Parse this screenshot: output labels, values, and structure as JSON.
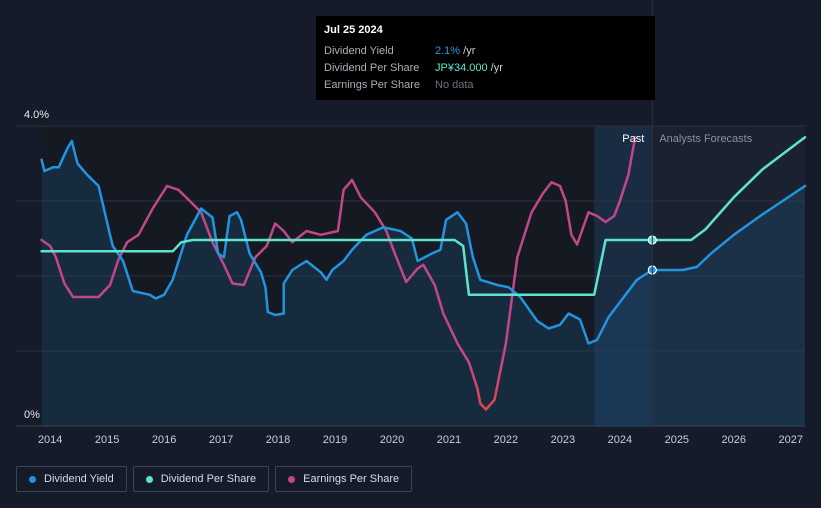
{
  "tooltip": {
    "date": "Jul 25 2024",
    "rows": [
      {
        "label": "Dividend Yield",
        "value": "2.1%",
        "suffix": " /yr"
      },
      {
        "label": "Dividend Per Share",
        "value": "JP¥34.000",
        "suffix": " /yr"
      },
      {
        "label": "Earnings Per Share",
        "value": "No data",
        "suffix": ""
      }
    ]
  },
  "legend": [
    {
      "label": "Dividend Yield",
      "color": "#2394df"
    },
    {
      "label": "Dividend Per Share",
      "color": "#5fe3cd"
    },
    {
      "label": "Earnings Per Share",
      "color": "#c2478a"
    }
  ],
  "chart_data": {
    "type": "line",
    "y_axis_labels": [
      "4.0%",
      "0%"
    ],
    "ylim": [
      0,
      4.0
    ],
    "xlim": [
      2013.4,
      2027.25
    ],
    "x_ticks": [
      "2014",
      "2015",
      "2016",
      "2017",
      "2018",
      "2019",
      "2020",
      "2021",
      "2022",
      "2023",
      "2024",
      "2025",
      "2026",
      "2027"
    ],
    "regions": {
      "past_label": "Past",
      "forecast_label": "Analysts Forecasts",
      "past_end": 2024.57,
      "highlight_start": 2023.55,
      "data_start": 2013.85
    },
    "series": [
      {
        "name": "Dividend Yield",
        "color": "#2394df",
        "unit": "%",
        "points": [
          [
            2013.85,
            3.55
          ],
          [
            2013.9,
            3.4
          ],
          [
            2014.05,
            3.45
          ],
          [
            2014.15,
            3.45
          ],
          [
            2014.3,
            3.7
          ],
          [
            2014.38,
            3.8
          ],
          [
            2014.48,
            3.5
          ],
          [
            2014.65,
            3.35
          ],
          [
            2014.85,
            3.2
          ],
          [
            2015.05,
            2.55
          ],
          [
            2015.1,
            2.4
          ],
          [
            2015.28,
            2.2
          ],
          [
            2015.45,
            1.8
          ],
          [
            2015.75,
            1.75
          ],
          [
            2015.85,
            1.7
          ],
          [
            2016.0,
            1.75
          ],
          [
            2016.15,
            1.95
          ],
          [
            2016.4,
            2.55
          ],
          [
            2016.65,
            2.9
          ],
          [
            2016.85,
            2.78
          ],
          [
            2016.95,
            2.3
          ],
          [
            2017.05,
            2.25
          ],
          [
            2017.15,
            2.8
          ],
          [
            2017.28,
            2.85
          ],
          [
            2017.35,
            2.75
          ],
          [
            2017.5,
            2.3
          ],
          [
            2017.7,
            2.05
          ],
          [
            2017.78,
            1.85
          ],
          [
            2017.82,
            1.52
          ],
          [
            2017.95,
            1.48
          ],
          [
            2018.1,
            1.5
          ],
          [
            2018.1,
            1.9
          ],
          [
            2018.25,
            2.08
          ],
          [
            2018.5,
            2.2
          ],
          [
            2018.75,
            2.05
          ],
          [
            2018.85,
            1.95
          ],
          [
            2018.95,
            2.08
          ],
          [
            2019.15,
            2.2
          ],
          [
            2019.3,
            2.35
          ],
          [
            2019.55,
            2.55
          ],
          [
            2019.85,
            2.65
          ],
          [
            2020.15,
            2.6
          ],
          [
            2020.35,
            2.5
          ],
          [
            2020.45,
            2.2
          ],
          [
            2020.7,
            2.3
          ],
          [
            2020.85,
            2.35
          ],
          [
            2020.95,
            2.75
          ],
          [
            2021.15,
            2.85
          ],
          [
            2021.3,
            2.7
          ],
          [
            2021.42,
            2.25
          ],
          [
            2021.55,
            1.95
          ],
          [
            2021.85,
            1.88
          ],
          [
            2022.05,
            1.85
          ],
          [
            2022.25,
            1.72
          ],
          [
            2022.55,
            1.4
          ],
          [
            2022.75,
            1.3
          ],
          [
            2022.95,
            1.35
          ],
          [
            2023.1,
            1.5
          ],
          [
            2023.3,
            1.42
          ],
          [
            2023.45,
            1.1
          ],
          [
            2023.6,
            1.15
          ],
          [
            2023.8,
            1.45
          ],
          [
            2024.05,
            1.7
          ],
          [
            2024.3,
            1.95
          ],
          [
            2024.57,
            2.08
          ],
          [
            2024.8,
            2.08
          ],
          [
            2025.1,
            2.08
          ],
          [
            2025.35,
            2.12
          ],
          [
            2025.6,
            2.3
          ],
          [
            2026.0,
            2.55
          ],
          [
            2026.5,
            2.82
          ],
          [
            2027.25,
            3.2
          ]
        ],
        "highlight": {
          "x": 2024.57,
          "y": 2.08
        }
      },
      {
        "name": "Dividend Per Share",
        "color": "#5fe3cd",
        "unit": "JP¥",
        "points": [
          [
            2013.85,
            2.33
          ],
          [
            2016.15,
            2.33
          ],
          [
            2016.3,
            2.45
          ],
          [
            2016.5,
            2.48
          ],
          [
            2021.1,
            2.48
          ],
          [
            2021.25,
            2.4
          ],
          [
            2021.35,
            1.75
          ],
          [
            2023.55,
            1.75
          ],
          [
            2023.75,
            2.48
          ],
          [
            2024.57,
            2.48
          ],
          [
            2025.25,
            2.48
          ],
          [
            2025.5,
            2.62
          ],
          [
            2026.0,
            3.05
          ],
          [
            2026.5,
            3.42
          ],
          [
            2027.25,
            3.85
          ]
        ],
        "highlight": {
          "x": 2024.57,
          "y": 2.48
        }
      },
      {
        "name": "Earnings Per Share",
        "color": "#c2478a",
        "negative_color": "#e0444e",
        "unit": "JP¥",
        "points": [
          [
            2013.85,
            2.48
          ],
          [
            2014.0,
            2.4
          ],
          [
            2014.1,
            2.25
          ],
          [
            2014.25,
            1.9
          ],
          [
            2014.4,
            1.72
          ],
          [
            2014.6,
            1.72
          ],
          [
            2014.85,
            1.72
          ],
          [
            2015.05,
            1.88
          ],
          [
            2015.2,
            2.22
          ],
          [
            2015.35,
            2.45
          ],
          [
            2015.55,
            2.55
          ],
          [
            2015.8,
            2.9
          ],
          [
            2016.05,
            3.2
          ],
          [
            2016.25,
            3.15
          ],
          [
            2016.45,
            3.0
          ],
          [
            2016.65,
            2.85
          ],
          [
            2016.85,
            2.45
          ],
          [
            2017.05,
            2.15
          ],
          [
            2017.2,
            1.9
          ],
          [
            2017.4,
            1.88
          ],
          [
            2017.6,
            2.25
          ],
          [
            2017.8,
            2.4
          ],
          [
            2017.95,
            2.7
          ],
          [
            2018.1,
            2.6
          ],
          [
            2018.25,
            2.45
          ],
          [
            2018.5,
            2.6
          ],
          [
            2018.75,
            2.55
          ],
          [
            2019.05,
            2.6
          ],
          [
            2019.15,
            3.15
          ],
          [
            2019.3,
            3.28
          ],
          [
            2019.45,
            3.05
          ],
          [
            2019.7,
            2.85
          ],
          [
            2019.9,
            2.6
          ],
          [
            2020.05,
            2.3
          ],
          [
            2020.25,
            1.92
          ],
          [
            2020.45,
            2.1
          ],
          [
            2020.55,
            2.15
          ],
          [
            2020.75,
            1.88
          ],
          [
            2020.9,
            1.5
          ],
          [
            2021.15,
            1.1
          ],
          [
            2021.35,
            0.85
          ],
          [
            2021.5,
            0.5
          ],
          [
            2021.55,
            0.3
          ],
          [
            2021.65,
            0.22
          ],
          [
            2021.8,
            0.35
          ],
          [
            2022.0,
            1.1
          ],
          [
            2022.2,
            2.25
          ],
          [
            2022.45,
            2.85
          ],
          [
            2022.65,
            3.1
          ],
          [
            2022.8,
            3.25
          ],
          [
            2022.95,
            3.2
          ],
          [
            2023.05,
            3.0
          ],
          [
            2023.15,
            2.55
          ],
          [
            2023.25,
            2.42
          ],
          [
            2023.45,
            2.85
          ],
          [
            2023.6,
            2.8
          ],
          [
            2023.75,
            2.72
          ],
          [
            2023.9,
            2.8
          ],
          [
            2024.0,
            3.0
          ],
          [
            2024.15,
            3.35
          ],
          [
            2024.22,
            3.65
          ],
          [
            2024.27,
            3.85
          ]
        ]
      }
    ]
  }
}
